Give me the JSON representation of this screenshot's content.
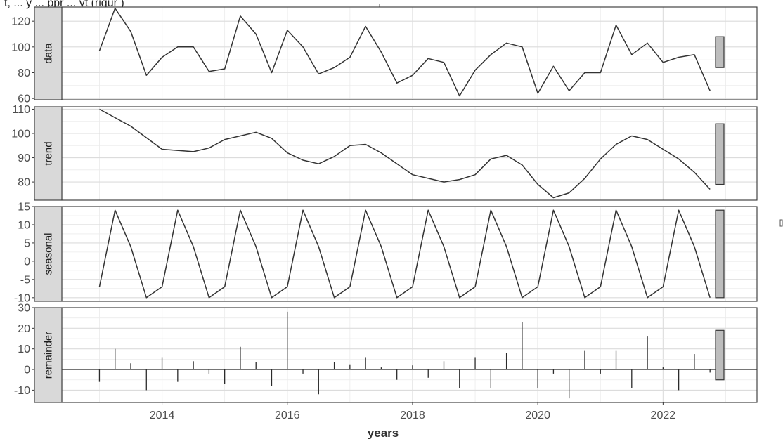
{
  "caption_text": "t, ... y ... ppr ... yt (rigur )",
  "chart_data": {
    "type": "line",
    "xlabel": "years",
    "x_ticks": [
      2014,
      2016,
      2018,
      2020,
      2022
    ],
    "xlim": [
      2012.4,
      2023.5
    ],
    "grid": true,
    "panels": [
      {
        "name": "data",
        "kind": "line",
        "ylim": [
          59,
          131
        ],
        "y_ticks": [
          60,
          80,
          100,
          120
        ],
        "range_bar": [
          84,
          108
        ],
        "points": [
          [
            2013.0,
            97
          ],
          [
            2013.25,
            130
          ],
          [
            2013.5,
            112
          ],
          [
            2013.75,
            78
          ],
          [
            2014.0,
            92
          ],
          [
            2014.25,
            100
          ],
          [
            2014.5,
            100
          ],
          [
            2014.75,
            81
          ],
          [
            2015.0,
            83
          ],
          [
            2015.25,
            124
          ],
          [
            2015.5,
            110
          ],
          [
            2015.75,
            80
          ],
          [
            2016.0,
            113
          ],
          [
            2016.25,
            100
          ],
          [
            2016.5,
            79
          ],
          [
            2016.75,
            84
          ],
          [
            2017.0,
            92
          ],
          [
            2017.25,
            116
          ],
          [
            2017.5,
            96
          ],
          [
            2017.75,
            72
          ],
          [
            2018.0,
            78
          ],
          [
            2018.25,
            91
          ],
          [
            2018.5,
            88
          ],
          [
            2018.75,
            62
          ],
          [
            2019.0,
            82
          ],
          [
            2019.25,
            94
          ],
          [
            2019.5,
            103
          ],
          [
            2019.75,
            100
          ],
          [
            2020.0,
            64
          ],
          [
            2020.25,
            85
          ],
          [
            2020.5,
            66
          ],
          [
            2020.75,
            80
          ],
          [
            2021.0,
            80
          ],
          [
            2021.25,
            117
          ],
          [
            2021.5,
            94
          ],
          [
            2021.75,
            103
          ],
          [
            2022.0,
            88
          ],
          [
            2022.25,
            92
          ],
          [
            2022.5,
            94
          ],
          [
            2022.75,
            66
          ]
        ]
      },
      {
        "name": "trend",
        "kind": "line",
        "ylim": [
          72.5,
          111
        ],
        "y_ticks": [
          80,
          90,
          100,
          110
        ],
        "range_bar": [
          79,
          104
        ],
        "points": [
          [
            2013.0,
            110
          ],
          [
            2013.5,
            103
          ],
          [
            2014.0,
            93.5
          ],
          [
            2014.5,
            92.5
          ],
          [
            2014.75,
            94
          ],
          [
            2015.0,
            97.5
          ],
          [
            2015.5,
            100.5
          ],
          [
            2015.75,
            98
          ],
          [
            2016.0,
            92
          ],
          [
            2016.25,
            89
          ],
          [
            2016.5,
            87.5
          ],
          [
            2016.75,
            90.5
          ],
          [
            2017.0,
            95
          ],
          [
            2017.25,
            95.5
          ],
          [
            2017.5,
            92
          ],
          [
            2018.0,
            83
          ],
          [
            2018.5,
            80
          ],
          [
            2018.75,
            81
          ],
          [
            2019.0,
            83
          ],
          [
            2019.25,
            89.5
          ],
          [
            2019.5,
            91
          ],
          [
            2019.75,
            87
          ],
          [
            2020.0,
            79
          ],
          [
            2020.25,
            73.5
          ],
          [
            2020.5,
            75.5
          ],
          [
            2020.75,
            81.5
          ],
          [
            2021.0,
            89.5
          ],
          [
            2021.25,
            95.5
          ],
          [
            2021.5,
            99
          ],
          [
            2021.75,
            97.5
          ],
          [
            2022.0,
            93.5
          ],
          [
            2022.25,
            89.5
          ],
          [
            2022.5,
            84
          ],
          [
            2022.75,
            77
          ]
        ]
      },
      {
        "name": "seasonal",
        "kind": "line",
        "ylim": [
          -11,
          15
        ],
        "y_ticks": [
          -10,
          -5,
          0,
          5,
          10,
          15
        ],
        "range_bar": [
          -10,
          14
        ],
        "cycle_start": 2013.0,
        "cycle_count": 10,
        "cycle_pattern": [
          [
            0,
            -7
          ],
          [
            0.25,
            14
          ],
          [
            0.5,
            4
          ],
          [
            0.75,
            -10
          ],
          [
            1.0,
            -7
          ]
        ]
      },
      {
        "name": "remainder",
        "kind": "spike",
        "ylim": [
          -16,
          30
        ],
        "y_ticks": [
          -10,
          0,
          10,
          20,
          30
        ],
        "range_bar": [
          -5,
          19
        ],
        "points": [
          [
            2013.0,
            -6
          ],
          [
            2013.25,
            10
          ],
          [
            2013.5,
            3
          ],
          [
            2013.75,
            -10
          ],
          [
            2014.0,
            6
          ],
          [
            2014.25,
            -6
          ],
          [
            2014.5,
            4
          ],
          [
            2014.75,
            -2
          ],
          [
            2015.0,
            -7
          ],
          [
            2015.25,
            11
          ],
          [
            2015.5,
            3.5
          ],
          [
            2015.75,
            -8
          ],
          [
            2016.0,
            28
          ],
          [
            2016.25,
            -2
          ],
          [
            2016.5,
            -12
          ],
          [
            2016.75,
            3.5
          ],
          [
            2017.0,
            2.5
          ],
          [
            2017.25,
            6
          ],
          [
            2017.5,
            1
          ],
          [
            2017.75,
            -5
          ],
          [
            2018.0,
            2
          ],
          [
            2018.25,
            -4
          ],
          [
            2018.5,
            4
          ],
          [
            2018.75,
            -9
          ],
          [
            2019.0,
            6
          ],
          [
            2019.25,
            -9
          ],
          [
            2019.5,
            8
          ],
          [
            2019.75,
            23
          ],
          [
            2020.0,
            -9
          ],
          [
            2020.25,
            -2
          ],
          [
            2020.5,
            -14
          ],
          [
            2020.75,
            9
          ],
          [
            2021.0,
            -2
          ],
          [
            2021.25,
            9
          ],
          [
            2021.5,
            -9
          ],
          [
            2021.75,
            16
          ],
          [
            2022.0,
            1
          ],
          [
            2022.25,
            -10
          ],
          [
            2022.5,
            7.5
          ],
          [
            2022.75,
            -1.5
          ]
        ]
      }
    ]
  }
}
